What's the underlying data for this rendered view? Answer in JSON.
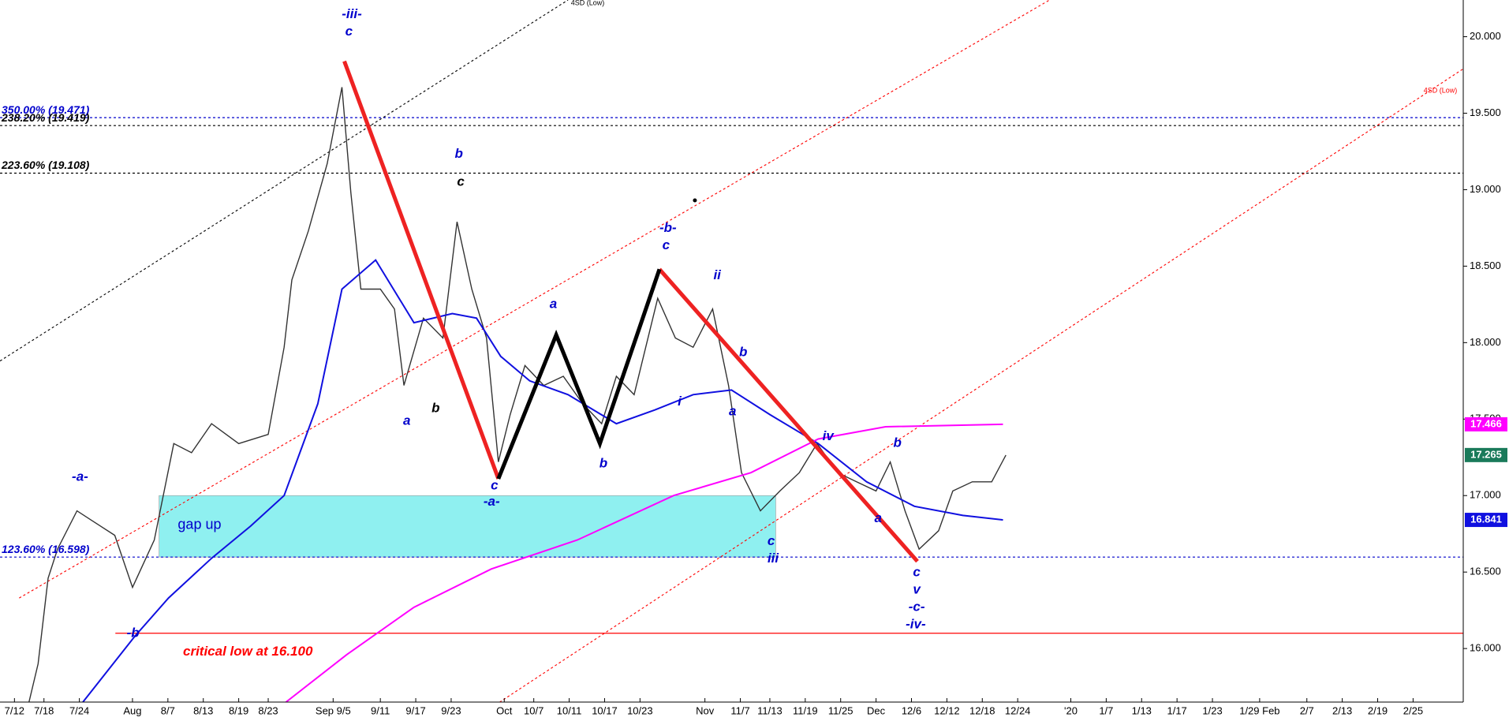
{
  "chart_data": {
    "type": "line",
    "xlim": [
      -2.45,
      245.5
    ],
    "ylim": [
      15.65,
      20.24
    ],
    "xticks": [
      {
        "value": 0,
        "label": "7/12"
      },
      {
        "value": 5,
        "label": "7/18"
      },
      {
        "value": 11,
        "label": "7/24"
      },
      {
        "value": 20,
        "label": "Aug"
      },
      {
        "value": 26,
        "label": "8/7"
      },
      {
        "value": 32,
        "label": "8/13"
      },
      {
        "value": 38,
        "label": "8/19"
      },
      {
        "value": 43,
        "label": "8/23"
      },
      {
        "value": 54,
        "label": "Sep 9/5"
      },
      {
        "value": 62,
        "label": "9/11"
      },
      {
        "value": 68,
        "label": "9/17"
      },
      {
        "value": 74,
        "label": "9/23"
      },
      {
        "value": 83,
        "label": "Oct"
      },
      {
        "value": 88,
        "label": "10/7"
      },
      {
        "value": 94,
        "label": "10/11"
      },
      {
        "value": 100,
        "label": "10/17"
      },
      {
        "value": 106,
        "label": "10/23"
      },
      {
        "value": 117,
        "label": "Nov"
      },
      {
        "value": 123,
        "label": "11/7"
      },
      {
        "value": 128,
        "label": "11/13"
      },
      {
        "value": 134,
        "label": "11/19"
      },
      {
        "value": 140,
        "label": "11/25"
      },
      {
        "value": 146,
        "label": "Dec"
      },
      {
        "value": 152,
        "label": "12/6"
      },
      {
        "value": 158,
        "label": "12/12"
      },
      {
        "value": 164,
        "label": "12/18"
      },
      {
        "value": 170,
        "label": "12/24"
      },
      {
        "value": 179,
        "label": "'20"
      },
      {
        "value": 185,
        "label": "1/7"
      },
      {
        "value": 191,
        "label": "1/13"
      },
      {
        "value": 197,
        "label": "1/17"
      },
      {
        "value": 203,
        "label": "1/23"
      },
      {
        "value": 211,
        "label": "1/29 Feb"
      },
      {
        "value": 219,
        "label": "2/7"
      },
      {
        "value": 225,
        "label": "2/13"
      },
      {
        "value": 231,
        "label": "2/19"
      },
      {
        "value": 237,
        "label": "2/25"
      }
    ],
    "yticks": [
      {
        "value": 16,
        "label": "16.000"
      },
      {
        "value": 16.5,
        "label": "16.500"
      },
      {
        "value": 17,
        "label": "17.000"
      },
      {
        "value": 17.5,
        "label": "17.500"
      },
      {
        "value": 18,
        "label": "18.000"
      },
      {
        "value": 18.5,
        "label": "18.500"
      },
      {
        "value": 19,
        "label": "19.000"
      },
      {
        "value": 19.5,
        "label": "19.500"
      },
      {
        "value": 20,
        "label": "20.000"
      }
    ],
    "series": [
      {
        "color": "#333333",
        "x": [
          2.4,
          4,
          5.7,
          7.3,
          10.6,
          13,
          17,
          20,
          23.7,
          27,
          30,
          33.4,
          38,
          43,
          45.7,
          47,
          49.8,
          53,
          55.5,
          57,
          58.7,
          62,
          64.4,
          66,
          69.3,
          72.6,
          75,
          77.5,
          80,
          82,
          84,
          86.5,
          89.7,
          93,
          96.3,
          99.5,
          102,
          105,
          109,
          112,
          115,
          118.3,
          121,
          123.2,
          126.4,
          129.7,
          133,
          136,
          139.5,
          142.7,
          146,
          148.4,
          150.9,
          153.3,
          156.6,
          159,
          162.3,
          165.6,
          168
        ],
        "values": [
          15.64,
          15.9,
          16.46,
          16.65,
          16.9,
          16.84,
          16.74,
          16.4,
          16.71,
          17.34,
          17.28,
          17.47,
          17.34,
          17.4,
          17.97,
          18.41,
          18.73,
          19.17,
          19.67,
          18.98,
          18.35,
          18.35,
          18.22,
          17.72,
          18.16,
          18.03,
          18.79,
          18.35,
          18.03,
          17.22,
          17.53,
          17.85,
          17.72,
          17.78,
          17.6,
          17.47,
          17.78,
          17.66,
          18.29,
          18.03,
          17.97,
          18.22,
          17.72,
          17.15,
          16.9,
          17.03,
          17.15,
          17.34,
          17.15,
          17.09,
          17.03,
          17.22,
          16.9,
          16.65,
          16.77,
          17.03,
          17.09,
          17.09,
          17.265
        ],
        "box_color": "#1a7a5a"
      },
      {
        "color": "#1010e0",
        "x": [
          11.4,
          20.4,
          26.1,
          33.4,
          40,
          45.7,
          51.4,
          55.5,
          61.2,
          67.7,
          74.2,
          78.3,
          82.4,
          87.3,
          93.8,
          102,
          108.5,
          115,
          121.5,
          128,
          136.2,
          144.4,
          152.5,
          160.7,
          167.5
        ],
        "values": [
          15.64,
          16.08,
          16.33,
          16.59,
          16.8,
          17.0,
          17.6,
          18.35,
          18.54,
          18.13,
          18.19,
          18.16,
          17.91,
          17.75,
          17.66,
          17.47,
          17.56,
          17.66,
          17.69,
          17.53,
          17.34,
          17.09,
          16.93,
          16.87,
          16.841
        ],
        "box_color": "#1010e0"
      },
      {
        "color": "#ff00ff",
        "x": [
          45.7,
          56.3,
          67.7,
          80.8,
          95.4,
          111.7,
          124.8,
          136.2,
          147.6,
          167.5
        ],
        "values": [
          15.64,
          15.96,
          16.27,
          16.52,
          16.71,
          17.0,
          17.15,
          17.37,
          17.45,
          17.466
        ],
        "box_color": "#ff00ff"
      }
    ],
    "zones": [
      {
        "x": [
          24.5,
          129
        ],
        "values": [
          16.598,
          17.0
        ],
        "color": "#8ff0f0"
      }
    ],
    "levels": [
      {
        "value": 19.471,
        "label": "350.00% (19.471)",
        "color": "#0000cc",
        "dash": "3,3"
      },
      {
        "value": 19.419,
        "label": "238.20% (19.419)",
        "color": "#000000",
        "dash": "3,3"
      },
      {
        "value": 19.108,
        "label": "223.60% (19.108)",
        "color": "#000000",
        "dash": "3,3"
      },
      {
        "value": 16.598,
        "label": "123.60% (16.598)",
        "color": "#0000cc",
        "dash": "3,3"
      },
      {
        "value": 16.1,
        "label": "critical low at 16.100",
        "color": "#ff0000",
        "from": 17.1
      }
    ],
    "channels": [
      {
        "x": [
          -2.45,
          93.8
        ],
        "values": [
          17.88,
          20.24
        ],
        "color": "#000000",
        "label": "4SD (Low)"
      },
      {
        "x": [
          0.8,
          175.4
        ],
        "values": [
          16.33,
          20.24
        ],
        "color": "#ff0000"
      },
      {
        "x": [
          77.5,
          245.5
        ],
        "values": [
          15.53,
          19.79
        ],
        "color": "#ff0000",
        "label": "4SD (Low)"
      }
    ],
    "waves": [
      {
        "x": [
          55.9,
          82
        ],
        "values": [
          19.84,
          17.11
        ],
        "color": "#ee2222"
      },
      {
        "x": [
          109.3,
          153
        ],
        "values": [
          18.48,
          16.57
        ],
        "color": "#ee2222"
      },
      {
        "x": [
          82,
          91.8,
          99.2,
          109.3
        ],
        "values": [
          17.11,
          18.05,
          17.34,
          18.48
        ],
        "color": "#000000"
      }
    ],
    "markers": [
      {
        "x": 115.3,
        "value": 18.93
      }
    ],
    "annotations": [
      {
        "text": "-iii-",
        "color": "#0000cc"
      },
      {
        "text": "c",
        "color": "#0000cc"
      },
      {
        "text": "b",
        "color": "#0000cc"
      },
      {
        "text": "c",
        "color": "#000000"
      },
      {
        "text": "a",
        "color": "#0000cc"
      },
      {
        "text": "b",
        "color": "#000000"
      },
      {
        "text": "c",
        "color": "#0000cc"
      },
      {
        "text": "-a-",
        "color": "#0000cc"
      },
      {
        "text": "a",
        "color": "#0000cc"
      },
      {
        "text": "b",
        "color": "#0000cc"
      },
      {
        "text": "-b-",
        "color": "#0000cc"
      },
      {
        "text": "c",
        "color": "#0000cc"
      },
      {
        "text": "ii",
        "color": "#0000cc"
      },
      {
        "text": "b",
        "color": "#0000cc"
      },
      {
        "text": "i",
        "color": "#0000cc"
      },
      {
        "text": "a",
        "color": "#0000cc"
      },
      {
        "text": "iv",
        "color": "#0000cc"
      },
      {
        "text": "b",
        "color": "#0000cc"
      },
      {
        "text": "a",
        "color": "#0000cc"
      },
      {
        "text": "c",
        "color": "#0000cc"
      },
      {
        "text": "iii",
        "color": "#0000cc"
      },
      {
        "text": "c",
        "color": "#0000cc"
      },
      {
        "text": "v",
        "color": "#0000cc"
      },
      {
        "text": "-c-",
        "color": "#0000cc"
      },
      {
        "text": "-iv-",
        "color": "#0000cc"
      },
      {
        "text": "-a-",
        "color": "#0000cc"
      },
      {
        "text": "-b",
        "color": "#0000cc"
      },
      {
        "text": "gap up",
        "color": "#0000cc"
      }
    ]
  }
}
